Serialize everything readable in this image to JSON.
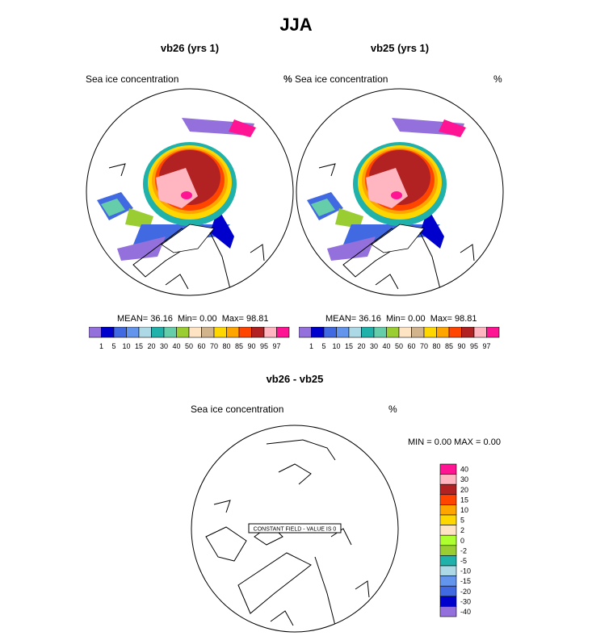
{
  "page": {
    "season_title": "JJA"
  },
  "colors": {
    "pos_scale": [
      "#9370db",
      "#0000cd",
      "#4169e1",
      "#6495ed",
      "#add8e6",
      "#20b2aa",
      "#66cdaa",
      "#9acd32",
      "#ffe4c4",
      "#d2b48c",
      "#ffd700",
      "#ffa500",
      "#ff4500",
      "#b22222",
      "#ffb6c1",
      "#ff1493"
    ],
    "diff_scale": [
      "#9370db",
      "#0000cd",
      "#4169e1",
      "#6495ed",
      "#add8e6",
      "#20b2aa",
      "#9acd32",
      "#adff2f",
      "#ffe4c4",
      "#ffd700",
      "#ffa500",
      "#ff4500",
      "#b22222",
      "#ffb6c1",
      "#ff1493"
    ]
  },
  "chart_data": [
    {
      "type": "heatmap",
      "title": "vb26 (yrs 1)",
      "variable_label": "Sea ice concentration",
      "units": "%",
      "stats": {
        "mean_label": "MEAN=",
        "mean": "36.16",
        "min_label": "Min=",
        "min": "0.00",
        "max_label": "Max=",
        "max": "98.81"
      },
      "levels": [
        "1",
        "5",
        "10",
        "15",
        "20",
        "30",
        "40",
        "50",
        "60",
        "70",
        "80",
        "85",
        "90",
        "95",
        "97"
      ]
    },
    {
      "type": "heatmap",
      "title": "vb25 (yrs 1)",
      "variable_label": "% Sea ice concentration",
      "units": "%",
      "stats": {
        "mean_label": "MEAN=",
        "mean": "36.16",
        "min_label": "Min=",
        "min": "0.00",
        "max_label": "Max=",
        "max": "98.81"
      },
      "levels": [
        "1",
        "5",
        "10",
        "15",
        "20",
        "30",
        "40",
        "50",
        "60",
        "70",
        "80",
        "85",
        "90",
        "95",
        "97"
      ]
    },
    {
      "type": "heatmap",
      "title": "vb26 - vb25",
      "variable_label": "Sea ice concentration",
      "units": "%",
      "minmax_text": "MIN =   0.00 MAX =   0.00",
      "constant_field_text": "CONSTANT FIELD - VALUE IS 0",
      "levels": [
        "40",
        "30",
        "20",
        "15",
        "10",
        "5",
        "2",
        "0",
        "-2",
        "-5",
        "-10",
        "-15",
        "-20",
        "-30",
        "-40"
      ]
    }
  ]
}
